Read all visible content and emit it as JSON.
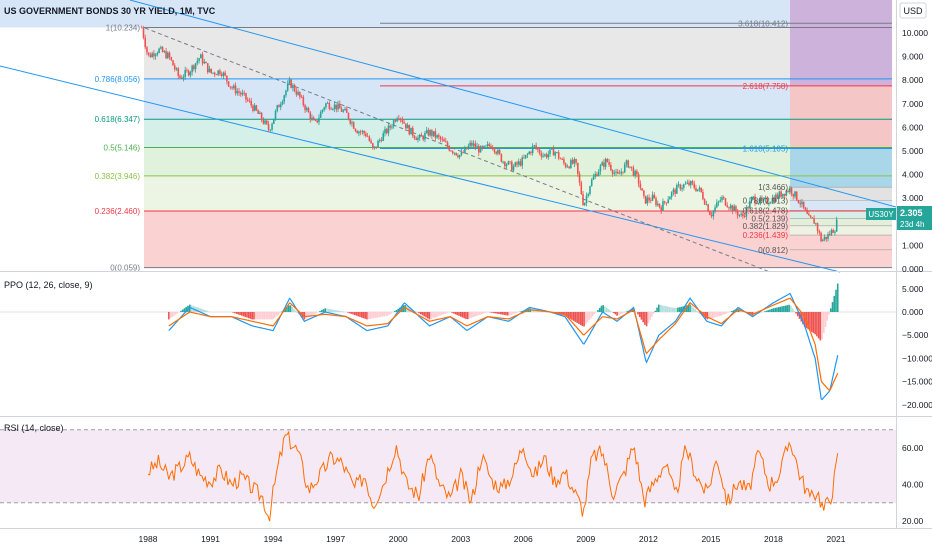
{
  "header": {
    "title": "US GOVERNMENT BONDS 30 YR YIELD, 1M, TVC"
  },
  "price_axis": {
    "currency": "USD",
    "ticks": [
      "10.000",
      "9.000",
      "8.000",
      "7.000",
      "6.000",
      "5.000",
      "4.000",
      "3.000",
      "2.000",
      "1.000",
      "0.000"
    ],
    "last_symbol": "US30Y",
    "last_value": "2.305",
    "countdown": "23d 4h"
  },
  "colors": {
    "up": "#26a69a",
    "down": "#ef5350",
    "channel": "#2196f3",
    "ppo_line": "#2196f3",
    "ppo_signal": "#ff6d00",
    "rsi": "#ff6d00",
    "rsi_band": "#e1bee7"
  },
  "fib_main": [
    {
      "level": "1(10.234)",
      "value": 10.234,
      "fill": "#e8e8e8",
      "line": "#787b86"
    },
    {
      "level": "0.786(8.056)",
      "value": 8.056,
      "fill": "#d6e6f7",
      "line": "#2196f3"
    },
    {
      "level": "0.618(6.347)",
      "value": 6.347,
      "fill": "#d5efe9",
      "line": "#089981"
    },
    {
      "level": "0.5(5.146)",
      "value": 5.146,
      "fill": "#e0f2dc",
      "line": "#4caf50"
    },
    {
      "level": "0.382(3.946)",
      "value": 3.946,
      "fill": "#ecf5e4",
      "line": "#8bc34a"
    },
    {
      "level": "0.236(2.460)",
      "value": 2.46,
      "fill": "#fbd2d2",
      "line": "#f23645"
    },
    {
      "level": "0(0.059)",
      "value": 0.059,
      "fill": null,
      "line": "#787b86"
    }
  ],
  "fib_ext": [
    {
      "level": "3.618(10.412)",
      "value": 10.412,
      "line": "#787b86"
    },
    {
      "level": "2.618(7.758)",
      "value": 7.758,
      "line": "#f23645"
    },
    {
      "level": "1.618(5.105)",
      "value": 5.105,
      "line": "#2196f3"
    }
  ],
  "fib_small": [
    {
      "level": "1(3.466)",
      "value": 3.466,
      "fill": "#e0e0e0"
    },
    {
      "level": "0.786(2.913)",
      "value": 2.913,
      "fill": "#d6e6f7"
    },
    {
      "level": "0.618(2.478)",
      "value": 2.478,
      "fill": "#d5efe9"
    },
    {
      "level": "0.5(2.139)",
      "value": 2.139,
      "fill": "#e0f2dc"
    },
    {
      "level": "0.382(1.829)",
      "value": 1.829,
      "fill": "#ecf5e4"
    },
    {
      "level": "0.236(1.439)",
      "value": 1.439,
      "fill": "#fbd2d2"
    },
    {
      "level": "0(0.812)",
      "value": 0.812,
      "fill": null
    }
  ],
  "ppo": {
    "label": "PPO (12, 26, close, 9)",
    "ticks": [
      "5.000",
      "0.000",
      "−5.000",
      "−10.000",
      "−15.000",
      "−20.000"
    ]
  },
  "rsi": {
    "label": "RSI (14, close)",
    "ticks": [
      "60.00",
      "40.00",
      "20.00"
    ]
  },
  "chart_data": {
    "type": "line",
    "title": "US GOVERNMENT BONDS 30 YR YIELD, 1M, TVC",
    "x_ticks": [
      "1988",
      "1991",
      "1994",
      "1997",
      "2000",
      "2003",
      "2006",
      "2009",
      "2012",
      "2015",
      "2018",
      "2021"
    ],
    "price": {
      "name": "US30Y",
      "ylim": [
        0,
        10.6
      ],
      "x": [
        1987.7,
        1988.0,
        1988.5,
        1989.0,
        1989.5,
        1990.0,
        1990.5,
        1991.0,
        1991.5,
        1992.0,
        1992.5,
        1993.0,
        1993.5,
        1993.8,
        1994.2,
        1994.8,
        1995.2,
        1995.7,
        1996.0,
        1996.5,
        1997.0,
        1997.5,
        1998.0,
        1998.5,
        1998.8,
        1999.2,
        1999.6,
        2000.0,
        2000.5,
        2001.0,
        2001.5,
        2002.0,
        2002.5,
        2003.0,
        2003.5,
        2004.0,
        2004.5,
        2005.0,
        2005.5,
        2006.0,
        2006.5,
        2007.0,
        2007.5,
        2008.0,
        2008.5,
        2008.9,
        2009.2,
        2009.6,
        2010.0,
        2010.5,
        2011.0,
        2011.5,
        2011.8,
        2012.2,
        2012.6,
        2013.0,
        2013.5,
        2014.0,
        2014.5,
        2015.0,
        2015.5,
        2016.0,
        2016.5,
        2017.0,
        2017.5,
        2018.0,
        2018.8,
        2019.3,
        2019.7,
        2020.0,
        2020.3,
        2020.6,
        2021.0,
        2021.1
      ],
      "y": [
        10.23,
        9.0,
        9.3,
        9.0,
        8.1,
        8.4,
        9.0,
        8.3,
        8.4,
        7.7,
        7.4,
        6.9,
        6.3,
        5.9,
        6.8,
        7.9,
        7.4,
        6.6,
        6.1,
        7.0,
        6.9,
        6.6,
        5.9,
        5.7,
        5.0,
        5.6,
        6.0,
        6.6,
        5.9,
        5.5,
        5.8,
        5.5,
        5.1,
        4.8,
        5.3,
        5.0,
        5.3,
        4.6,
        4.3,
        4.6,
        5.2,
        4.8,
        5.0,
        4.4,
        4.5,
        2.7,
        3.6,
        4.2,
        4.6,
        3.9,
        4.5,
        3.8,
        2.9,
        3.0,
        2.6,
        3.1,
        3.5,
        3.6,
        3.3,
        2.3,
        3.0,
        2.6,
        2.2,
        3.0,
        2.8,
        3.0,
        3.4,
        2.8,
        2.1,
        2.0,
        1.2,
        1.4,
        1.8,
        2.305
      ]
    },
    "ppo": {
      "ylim": [
        -21,
        7
      ],
      "x": [
        1989.0,
        1990.0,
        1991.0,
        1992.0,
        1993.0,
        1994.0,
        1994.8,
        1995.5,
        1996.5,
        1997.5,
        1998.5,
        1999.5,
        2000.3,
        2001.5,
        2002.5,
        2003.3,
        2004.3,
        2005.3,
        2006.3,
        2007.3,
        2008.0,
        2008.9,
        2009.8,
        2010.5,
        2011.3,
        2011.9,
        2012.5,
        2013.3,
        2014.0,
        2014.8,
        2015.5,
        2016.3,
        2017.0,
        2018.0,
        2018.8,
        2019.5,
        2020.0,
        2020.3,
        2020.7,
        2021.1
      ],
      "line": [
        -4,
        1,
        -1,
        -1,
        -3,
        -4,
        3,
        -2,
        0,
        -1,
        -4,
        -3,
        2,
        -3,
        -1,
        -4,
        -1,
        -2,
        1,
        0,
        -1,
        -7,
        0,
        -2,
        1,
        -11,
        -5,
        -2,
        3,
        -2,
        -3,
        1,
        -1,
        2,
        4,
        -3,
        -10,
        -19,
        -17,
        -9
      ],
      "signal": [
        -3,
        0,
        -1,
        -1,
        -2,
        -3,
        2,
        -1,
        -0.5,
        -1,
        -3,
        -2.5,
        1,
        -2,
        -1,
        -3,
        -1,
        -1.5,
        0.5,
        0,
        -0.5,
        -5,
        -1,
        -1.5,
        0.5,
        -9,
        -6,
        -2.5,
        2,
        -1,
        -2.5,
        0.5,
        -0.5,
        1.5,
        3,
        -1,
        -7,
        -15,
        -17,
        -13
      ]
    },
    "rsi": {
      "ylim": [
        15,
        72
      ],
      "bands": [
        30,
        70
      ],
      "x": [
        1988.0,
        1988.5,
        1989.0,
        1989.5,
        1990.0,
        1990.5,
        1991.0,
        1991.5,
        1992.0,
        1992.5,
        1993.0,
        1993.5,
        1993.8,
        1994.2,
        1994.6,
        1995.2,
        1995.7,
        1996.3,
        1996.8,
        1997.3,
        1997.9,
        1998.4,
        1998.8,
        1999.3,
        1999.9,
        2000.4,
        2001.0,
        2001.5,
        2002.0,
        2002.5,
        2003.0,
        2003.5,
        2004.0,
        2004.5,
        2005.0,
        2005.5,
        2006.0,
        2006.5,
        2007.0,
        2007.5,
        2008.0,
        2008.5,
        2008.9,
        2009.3,
        2009.8,
        2010.3,
        2010.8,
        2011.3,
        2011.8,
        2012.3,
        2012.8,
        2013.3,
        2013.8,
        2014.3,
        2014.8,
        2015.3,
        2015.8,
        2016.3,
        2016.8,
        2017.3,
        2017.8,
        2018.3,
        2018.8,
        2019.3,
        2019.8,
        2020.1,
        2020.4,
        2020.8,
        2021.1
      ],
      "values": [
        47,
        52,
        44,
        49,
        55,
        45,
        42,
        48,
        40,
        44,
        38,
        33,
        22,
        48,
        67,
        58,
        37,
        46,
        55,
        52,
        38,
        45,
        29,
        41,
        62,
        40,
        34,
        57,
        39,
        32,
        45,
        30,
        56,
        42,
        38,
        46,
        62,
        44,
        55,
        42,
        47,
        35,
        25,
        55,
        58,
        35,
        45,
        62,
        31,
        42,
        52,
        33,
        60,
        45,
        35,
        55,
        30,
        42,
        36,
        58,
        40,
        46,
        65,
        44,
        32,
        37,
        26,
        35,
        56
      ]
    }
  }
}
